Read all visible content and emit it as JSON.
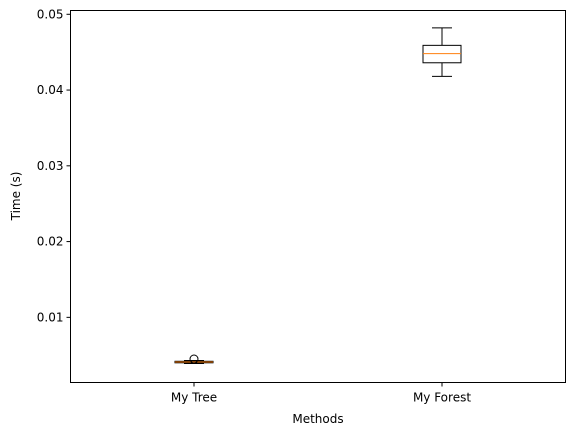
{
  "chart_data": {
    "type": "box",
    "xlabel": "Methods",
    "ylabel": "Time (s)",
    "ylim": [
      0.0014,
      0.0505
    ],
    "yticks": [
      0.01,
      0.02,
      0.03,
      0.04,
      0.05
    ],
    "ytick_labels": [
      "0.01",
      "0.02",
      "0.03",
      "0.04",
      "0.05"
    ],
    "categories": [
      "My Tree",
      "My Forest"
    ],
    "boxes": [
      {
        "category": "My Tree",
        "whisker_low": 0.0039,
        "q1": 0.004,
        "median": 0.0041,
        "q3": 0.0042,
        "whisker_high": 0.0043,
        "fliers": [
          0.0045
        ]
      },
      {
        "category": "My Forest",
        "whisker_low": 0.0418,
        "q1": 0.0436,
        "median": 0.0448,
        "q3": 0.0459,
        "whisker_high": 0.0482,
        "fliers": []
      }
    ],
    "grid": false,
    "colors": {
      "box": "#000000",
      "median": "#ff7f0e",
      "axes": "#000000"
    }
  }
}
